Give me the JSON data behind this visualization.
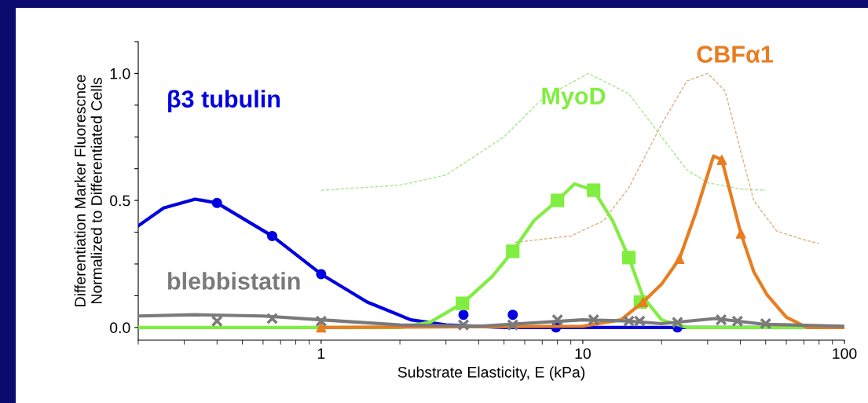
{
  "chart_data": {
    "type": "line",
    "xlabel": "Substrate Elasticity, E (kPa)",
    "ylabel": "Differentiation Marker Fluorescnce\nNormalized to Differentiated Cells",
    "log": "x",
    "xlim": [
      0.2,
      100
    ],
    "xticks": [
      {
        "value": 1,
        "label": "1"
      },
      {
        "value": 10,
        "label": "10"
      },
      {
        "value": 100,
        "label": "100"
      }
    ],
    "ylim": [
      -0.05,
      1.125
    ],
    "yticks": [
      {
        "value": 0,
        "label": "0.0"
      },
      {
        "value": 0.125,
        "label": null
      },
      {
        "value": 0.25,
        "label": null
      },
      {
        "value": 0.375,
        "label": null
      },
      {
        "value": 0.5,
        "label": "0.5"
      },
      {
        "value": 0.625,
        "label": null
      },
      {
        "value": 0.75,
        "label": null
      },
      {
        "value": 0.875,
        "label": null
      },
      {
        "value": 1.0,
        "label": "1.0"
      },
      {
        "value": 1.125,
        "label": null
      }
    ],
    "grid": false,
    "series": [
      {
        "line_style": "dashed",
        "marker": "none",
        "color": "#a8e890",
        "x": [
          1,
          2,
          3,
          5,
          7,
          10.5,
          15,
          20,
          25,
          30,
          40,
          50
        ],
        "values": [
          0.54,
          0.56,
          0.6,
          0.75,
          0.9,
          1.0,
          0.92,
          0.75,
          0.62,
          0.57,
          0.545,
          0.54
        ]
      },
      {
        "line_style": "dashed",
        "marker": "none",
        "color": "#e0b080",
        "x": [
          5.5,
          9,
          12,
          15,
          20,
          25,
          30,
          35,
          40,
          45,
          55,
          70,
          80
        ],
        "values": [
          0.335,
          0.36,
          0.42,
          0.55,
          0.8,
          0.97,
          1.0,
          0.93,
          0.7,
          0.5,
          0.38,
          0.345,
          0.33
        ]
      },
      {
        "name": "β3 tubulin",
        "color": "#0000e0",
        "line_style": "solid",
        "marker": "none",
        "x": [
          0.2,
          0.25,
          0.33,
          0.4,
          0.65,
          1.0,
          1.5,
          2.2,
          3,
          5,
          100
        ],
        "values": [
          0.4,
          0.47,
          0.505,
          0.49,
          0.36,
          0.21,
          0.1,
          0.03,
          0.01,
          0.0,
          0.0
        ]
      },
      {
        "type": "scatter",
        "color": "#0000e0",
        "marker": "circle",
        "x": [
          0.4,
          0.65,
          1.0,
          3.5,
          5.4,
          7.9,
          23
        ],
        "values": [
          0.49,
          0.36,
          0.21,
          0.05,
          0.05,
          0.0,
          0.0
        ]
      },
      {
        "name": "MyoD",
        "color": "#80ee40",
        "line_style": "solid",
        "marker": "none",
        "x": [
          0.2,
          2,
          2.6,
          3.47,
          4.5,
          5.4,
          6.5,
          8.0,
          9.3,
          11,
          13,
          15,
          17,
          20,
          25,
          100
        ],
        "values": [
          0,
          0,
          0.02,
          0.095,
          0.2,
          0.3,
          0.42,
          0.5,
          0.565,
          0.54,
          0.42,
          0.275,
          0.12,
          0.03,
          0,
          0
        ]
      },
      {
        "type": "scatter",
        "color": "#80ee40",
        "marker": "square",
        "x": [
          3.47,
          5.4,
          8.0,
          11.0,
          15.0,
          16.6
        ],
        "values": [
          0.095,
          0.3,
          0.5,
          0.54,
          0.275,
          0.1
        ]
      },
      {
        "name": "CBFα1",
        "color": "#e87d20",
        "line_style": "solid",
        "marker": "none",
        "x": [
          1,
          10,
          14,
          17,
          20,
          23.4,
          27,
          31.6,
          34,
          40.2,
          45,
          50.5,
          60,
          72,
          100
        ],
        "values": [
          0,
          0.005,
          0.03,
          0.1,
          0.17,
          0.27,
          0.45,
          0.675,
          0.66,
          0.37,
          0.22,
          0.13,
          0.04,
          0,
          0
        ]
      },
      {
        "type": "scatter",
        "color": "#e87d20",
        "marker": "triangle",
        "x": [
          1.0,
          17.0,
          23.4,
          34.0,
          40.2
        ],
        "values": [
          0.0,
          0.1,
          0.27,
          0.66,
          0.37
        ]
      },
      {
        "name": "blebbistatin",
        "color": "#7a7a7a",
        "line_style": "solid",
        "marker": "none",
        "x": [
          0.2,
          0.33,
          0.6,
          1,
          2,
          4,
          10,
          15,
          20,
          32,
          50,
          100
        ],
        "values": [
          0.045,
          0.05,
          0.045,
          0.03,
          0.01,
          0.005,
          0.03,
          0.025,
          0.015,
          0.035,
          0.012,
          0.005
        ]
      },
      {
        "type": "scatter",
        "color": "#7a7a7a",
        "marker": "cross",
        "x": [
          0.4,
          0.65,
          1.0,
          3.5,
          5.4,
          8.0,
          11,
          15,
          16.5,
          23,
          33.8,
          39,
          50
        ],
        "values": [
          0.025,
          0.035,
          0.025,
          0.01,
          0.01,
          0.03,
          0.03,
          0.025,
          0.025,
          0.02,
          0.03,
          0.025,
          0.015
        ]
      }
    ]
  }
}
